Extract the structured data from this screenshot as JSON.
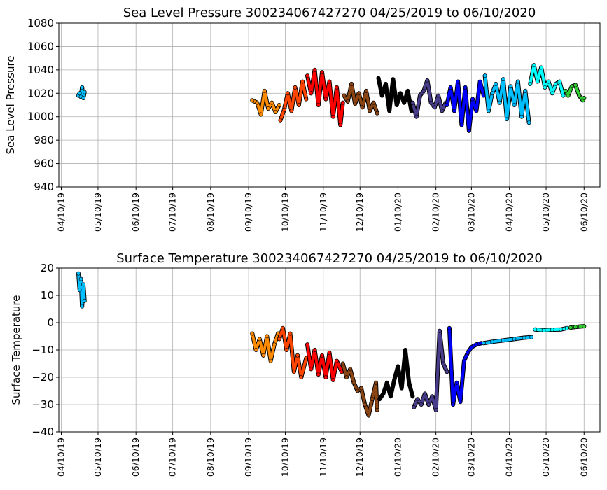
{
  "chart_data": [
    {
      "type": "scatter",
      "title": "Sea Level Pressure 300234067427270  04/25/2019 to 06/10/2020",
      "xlabel": "",
      "ylabel": "Sea Level Pressure",
      "ylim": [
        940,
        1080
      ],
      "yticks": [
        940,
        960,
        980,
        1000,
        1020,
        1040,
        1060,
        1080
      ],
      "xlim": [
        "04/08/19",
        "06/23/20"
      ],
      "xticks": [
        "04/10/19",
        "05/10/19",
        "06/10/19",
        "07/10/19",
        "08/10/19",
        "09/10/19",
        "10/10/19",
        "11/10/19",
        "12/10/19",
        "01/10/20",
        "02/10/20",
        "03/10/20",
        "04/10/20",
        "05/10/20",
        "06/10/20"
      ],
      "grid": true,
      "series": [
        {
          "color": "#00bfff",
          "points": [
            [
              "04/24/19",
              1018
            ],
            [
              "04/25/19",
              1020
            ],
            [
              "04/26/19",
              1017
            ],
            [
              "04/27/19",
              1025
            ],
            [
              "04/28/19",
              1016
            ],
            [
              "04/29/19",
              1021
            ]
          ]
        },
        {
          "color": "#ff8c00",
          "points": [
            [
              "09/13/19",
              1014
            ],
            [
              "09/17/19",
              1012
            ],
            [
              "09/20/19",
              1002
            ],
            [
              "09/23/19",
              1022
            ],
            [
              "09/26/19",
              1007
            ],
            [
              "09/29/19",
              1012
            ],
            [
              "10/02/19",
              1004
            ],
            [
              "10/05/19",
              1010
            ]
          ]
        },
        {
          "color": "#ff4500",
          "points": [
            [
              "10/06/19",
              997
            ],
            [
              "10/09/19",
              1006
            ],
            [
              "10/12/19",
              1020
            ],
            [
              "10/15/19",
              1005
            ],
            [
              "10/18/19",
              1025
            ],
            [
              "10/21/19",
              1010
            ],
            [
              "10/24/19",
              1030
            ],
            [
              "10/27/19",
              1015
            ]
          ]
        },
        {
          "color": "#ff0000",
          "points": [
            [
              "10/28/19",
              1035
            ],
            [
              "10/31/19",
              1020
            ],
            [
              "11/03/19",
              1040
            ],
            [
              "11/06/19",
              1010
            ],
            [
              "11/09/19",
              1038
            ],
            [
              "11/12/19",
              1015
            ],
            [
              "11/15/19",
              1030
            ],
            [
              "11/18/19",
              1000
            ],
            [
              "11/21/19",
              1025
            ],
            [
              "11/24/19",
              993
            ],
            [
              "11/26/19",
              1012
            ]
          ]
        },
        {
          "color": "#8b4513",
          "points": [
            [
              "11/27/19",
              1018
            ],
            [
              "11/30/19",
              1013
            ],
            [
              "12/03/19",
              1028
            ],
            [
              "12/06/19",
              1011
            ],
            [
              "12/09/19",
              1020
            ],
            [
              "12/12/19",
              1008
            ],
            [
              "12/15/19",
              1022
            ],
            [
              "12/18/19",
              1005
            ],
            [
              "12/21/19",
              1012
            ],
            [
              "12/24/19",
              1003
            ]
          ]
        },
        {
          "color": "#000000",
          "points": [
            [
              "12/25/19",
              1033
            ],
            [
              "12/28/19",
              1018
            ],
            [
              "12/31/19",
              1028
            ],
            [
              "01/03/20",
              1005
            ],
            [
              "01/06/20",
              1032
            ],
            [
              "01/09/20",
              1010
            ],
            [
              "01/12/20",
              1020
            ],
            [
              "01/15/20",
              1012
            ],
            [
              "01/18/20",
              1022
            ],
            [
              "01/21/20",
              1005
            ]
          ]
        },
        {
          "color": "#483d8b",
          "points": [
            [
              "01/22/20",
              1012
            ],
            [
              "01/25/20",
              1000
            ],
            [
              "01/28/20",
              1018
            ],
            [
              "01/31/20",
              1022
            ],
            [
              "02/03/20",
              1031
            ],
            [
              "02/06/20",
              1012
            ],
            [
              "02/09/20",
              1008
            ],
            [
              "02/12/20",
              1018
            ],
            [
              "02/15/20",
              1005
            ],
            [
              "02/18/20",
              1012
            ]
          ]
        },
        {
          "color": "#0000ff",
          "points": [
            [
              "02/19/20",
              1010
            ],
            [
              "02/22/20",
              1025
            ],
            [
              "02/25/20",
              1005
            ],
            [
              "02/28/20",
              1030
            ],
            [
              "03/02/20",
              993
            ],
            [
              "03/05/20",
              1025
            ],
            [
              "03/08/20",
              988
            ],
            [
              "03/11/20",
              1015
            ],
            [
              "03/14/20",
              1005
            ],
            [
              "03/17/20",
              1030
            ],
            [
              "03/20/20",
              1018
            ]
          ]
        },
        {
          "color": "#00bfff",
          "points": [
            [
              "03/21/20",
              1035
            ],
            [
              "03/24/20",
              1005
            ],
            [
              "03/27/20",
              1020
            ],
            [
              "03/30/20",
              1028
            ],
            [
              "04/02/20",
              1012
            ],
            [
              "04/05/20",
              1032
            ],
            [
              "04/08/20",
              998
            ],
            [
              "04/11/20",
              1026
            ],
            [
              "04/14/20",
              1010
            ],
            [
              "04/17/20",
              1030
            ],
            [
              "04/20/20",
              1000
            ],
            [
              "04/23/20",
              1022
            ],
            [
              "04/26/20",
              995
            ]
          ]
        },
        {
          "color": "#00ffff",
          "points": [
            [
              "04/27/20",
              1028
            ],
            [
              "04/30/20",
              1044
            ],
            [
              "05/03/20",
              1030
            ],
            [
              "05/06/20",
              1042
            ],
            [
              "05/09/20",
              1025
            ],
            [
              "05/12/20",
              1030
            ],
            [
              "05/15/20",
              1020
            ],
            [
              "05/18/20",
              1028
            ],
            [
              "05/21/20",
              1030
            ],
            [
              "05/24/20",
              1018
            ]
          ]
        },
        {
          "color": "#32cd32",
          "points": [
            [
              "05/26/20",
              1022
            ],
            [
              "05/28/20",
              1018
            ],
            [
              "05/31/20",
              1026
            ],
            [
              "06/03/20",
              1027
            ],
            [
              "06/06/20",
              1018
            ],
            [
              "06/09/20",
              1014
            ],
            [
              "06/10/20",
              1016
            ]
          ]
        }
      ]
    },
    {
      "type": "scatter",
      "title": "Surface Temperature 300234067427270  04/25/2019 to 06/10/2020",
      "xlabel": "",
      "ylabel": "Surface Temperature",
      "ylim": [
        -40,
        20
      ],
      "yticks": [
        -40,
        -30,
        -20,
        -10,
        0,
        10,
        20
      ],
      "xlim": [
        "04/08/19",
        "06/23/20"
      ],
      "xticks": [
        "04/10/19",
        "05/10/19",
        "06/10/19",
        "07/10/19",
        "08/10/19",
        "09/10/19",
        "10/10/19",
        "11/10/19",
        "12/10/19",
        "01/10/20",
        "02/10/20",
        "03/10/20",
        "04/10/20",
        "05/10/20",
        "06/10/20"
      ],
      "grid": true,
      "series": [
        {
          "color": "#00bfff",
          "points": [
            [
              "04/24/19",
              18
            ],
            [
              "04/25/19",
              12
            ],
            [
              "04/26/19",
              16
            ],
            [
              "04/27/19",
              6
            ],
            [
              "04/28/19",
              14
            ],
            [
              "04/29/19",
              8
            ]
          ]
        },
        {
          "color": "#ff8c00",
          "points": [
            [
              "09/13/19",
              -4
            ],
            [
              "09/16/19",
              -10
            ],
            [
              "09/19/19",
              -6
            ],
            [
              "09/22/19",
              -12
            ],
            [
              "09/25/19",
              -5
            ],
            [
              "09/28/19",
              -14
            ],
            [
              "10/01/19",
              -8
            ],
            [
              "10/04/19",
              -4
            ]
          ]
        },
        {
          "color": "#ff4500",
          "points": [
            [
              "10/05/19",
              -6
            ],
            [
              "10/08/19",
              -2
            ],
            [
              "10/11/19",
              -10
            ],
            [
              "10/14/19",
              -4
            ],
            [
              "10/17/19",
              -18
            ],
            [
              "10/20/19",
              -12
            ],
            [
              "10/23/19",
              -20
            ],
            [
              "10/27/19",
              -13
            ]
          ]
        },
        {
          "color": "#ff0000",
          "points": [
            [
              "10/28/19",
              -8
            ],
            [
              "10/31/19",
              -17
            ],
            [
              "11/03/19",
              -10
            ],
            [
              "11/06/19",
              -19
            ],
            [
              "11/09/19",
              -12
            ],
            [
              "11/12/19",
              -20
            ],
            [
              "11/15/19",
              -11
            ],
            [
              "11/18/19",
              -21
            ],
            [
              "11/21/19",
              -14
            ],
            [
              "11/25/19",
              -18
            ]
          ]
        },
        {
          "color": "#8b4513",
          "points": [
            [
              "11/26/19",
              -15
            ],
            [
              "11/29/19",
              -20
            ],
            [
              "12/02/19",
              -17
            ],
            [
              "12/05/19",
              -22
            ],
            [
              "12/08/19",
              -25
            ],
            [
              "12/11/19",
              -24
            ],
            [
              "12/14/19",
              -30
            ],
            [
              "12/17/19",
              -34
            ],
            [
              "12/20/19",
              -28
            ],
            [
              "12/23/19",
              -22
            ],
            [
              "12/24/19",
              -32
            ]
          ]
        },
        {
          "color": "#000000",
          "points": [
            [
              "12/26/19",
              -28
            ],
            [
              "12/29/19",
              -26
            ],
            [
              "01/01/20",
              -22
            ],
            [
              "01/04/20",
              -27
            ],
            [
              "01/07/20",
              -21
            ],
            [
              "01/10/20",
              -16
            ],
            [
              "01/13/20",
              -24
            ],
            [
              "01/16/20",
              -10
            ],
            [
              "01/19/20",
              -22
            ],
            [
              "01/22/20",
              -27
            ]
          ]
        },
        {
          "color": "#483d8b",
          "points": [
            [
              "01/23/20",
              -31
            ],
            [
              "01/26/20",
              -28
            ],
            [
              "01/29/20",
              -30
            ],
            [
              "02/01/20",
              -26
            ],
            [
              "02/04/20",
              -30
            ],
            [
              "02/07/20",
              -27
            ],
            [
              "02/10/20",
              -32
            ],
            [
              "02/13/20",
              -3
            ],
            [
              "02/16/20",
              -15
            ],
            [
              "02/19/20",
              -18
            ]
          ]
        },
        {
          "color": "#0000ff",
          "points": [
            [
              "02/21/20",
              -2
            ],
            [
              "02/24/20",
              -30
            ],
            [
              "02/27/20",
              -22
            ],
            [
              "03/01/20",
              -29
            ],
            [
              "03/04/20",
              -14
            ],
            [
              "03/07/20",
              -11
            ],
            [
              "03/10/20",
              -9
            ],
            [
              "03/14/20",
              -8
            ],
            [
              "03/18/20",
              -7.5
            ]
          ]
        },
        {
          "color": "#00bfff",
          "points": [
            [
              "03/20/20",
              -7.5
            ],
            [
              "03/27/20",
              -7
            ],
            [
              "04/05/20",
              -6.5
            ],
            [
              "04/14/20",
              -6
            ],
            [
              "04/22/20",
              -5.5
            ],
            [
              "04/28/20",
              -5.3
            ]
          ]
        },
        {
          "color": "#00ffff",
          "points": [
            [
              "05/01/20",
              -2.5
            ],
            [
              "05/08/20",
              -2.8
            ],
            [
              "05/15/20",
              -2.6
            ],
            [
              "05/22/20",
              -2.5
            ],
            [
              "05/27/20",
              -2
            ]
          ]
        },
        {
          "color": "#32cd32",
          "points": [
            [
              "05/30/20",
              -1.8
            ],
            [
              "06/03/20",
              -1.6
            ],
            [
              "06/07/20",
              -1.4
            ],
            [
              "06/10/20",
              -1.3
            ]
          ]
        }
      ]
    }
  ]
}
